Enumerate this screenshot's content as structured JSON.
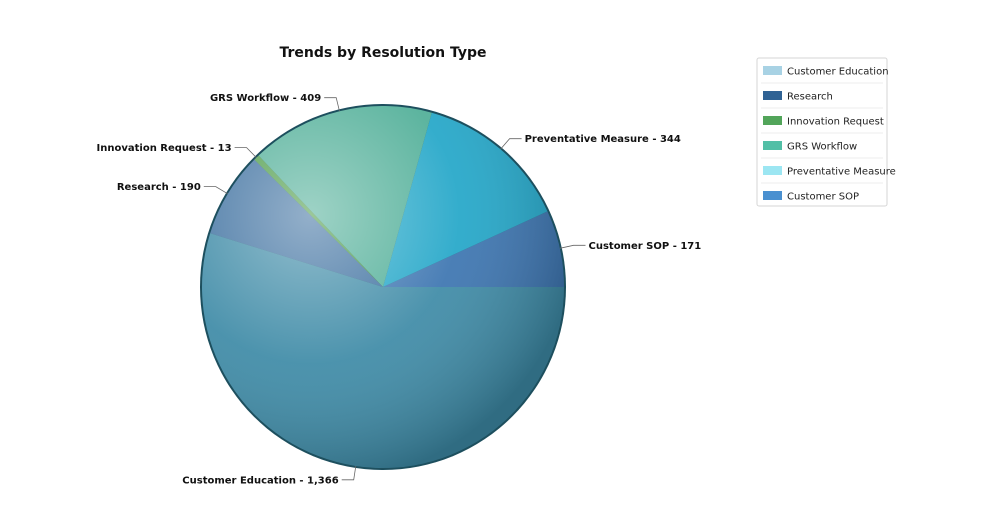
{
  "chart_data": {
    "type": "pie",
    "title": "Trends by Resolution Type",
    "start_angle_deg": 0,
    "direction": "counterclockwise",
    "legend_position": "top-right",
    "slices": [
      {
        "name": "Customer SOP",
        "value": 171,
        "label": "Customer SOP - 171",
        "color": "#3b74b0"
      },
      {
        "name": "Preventative Measure",
        "value": 344,
        "label": "Preventative Measure - 344",
        "color": "#22a6c8"
      },
      {
        "name": "GRS Workflow",
        "value": 409,
        "label": "GRS Workflow - 409",
        "color": "#4fae97"
      },
      {
        "name": "Innovation Request",
        "value": 13,
        "label": "Innovation Request - 13",
        "color": "#4a9a46"
      },
      {
        "name": "Research",
        "value": 190,
        "label": "Research - 190",
        "color": "#3c6f9f"
      },
      {
        "name": "Customer Education",
        "value": 1366,
        "label": "Customer Education - 1,366",
        "color": "#3d8aa6"
      }
    ],
    "legend": [
      {
        "name": "Customer Education",
        "color": "#a8d2e4"
      },
      {
        "name": "Research",
        "color": "#2f6294"
      },
      {
        "name": "Innovation Request",
        "color": "#52a55a"
      },
      {
        "name": "GRS Workflow",
        "color": "#52bfa6"
      },
      {
        "name": "Preventative Measure",
        "color": "#9ce6f2"
      },
      {
        "name": "Customer SOP",
        "color": "#4a90d0"
      }
    ]
  }
}
